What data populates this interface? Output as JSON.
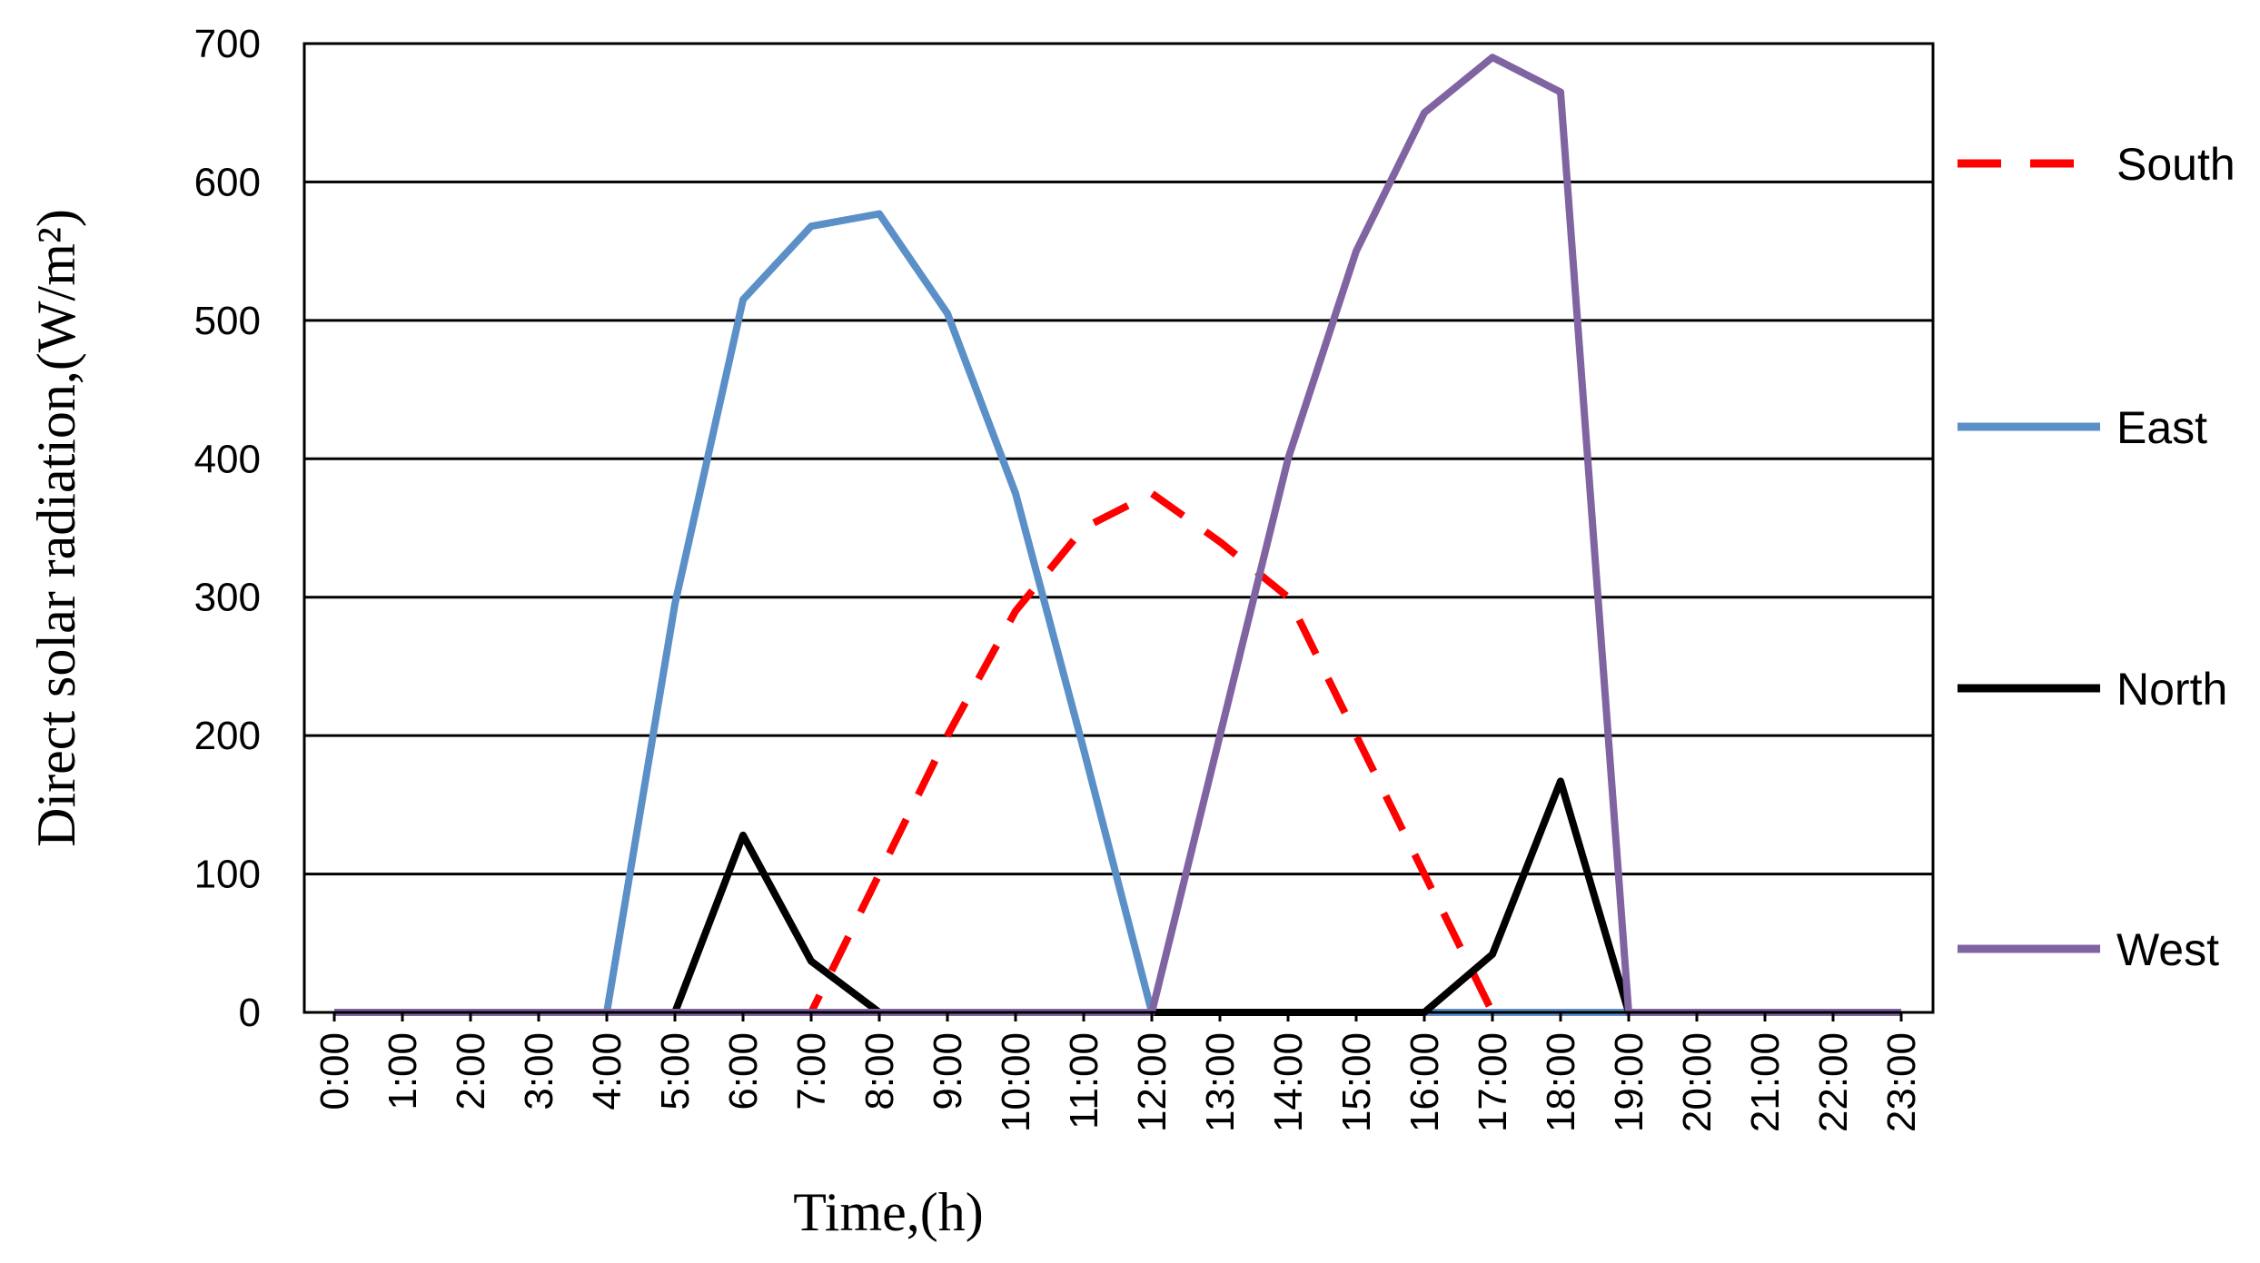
{
  "chart_data": {
    "type": "line",
    "title": "",
    "xlabel": "Time,(h)",
    "ylabel": "Direct solar radiation,(W/m²)",
    "ylim": [
      0,
      700
    ],
    "yticks": [
      "0",
      "100",
      "200",
      "300",
      "400",
      "500",
      "600",
      "700"
    ],
    "grid": "horizontal",
    "legend_position": "right",
    "categories": [
      "0:00",
      "1:00",
      "2:00",
      "3:00",
      "4:00",
      "5:00",
      "6:00",
      "7:00",
      "8:00",
      "9:00",
      "10:00",
      "11:00",
      "12:00",
      "13:00",
      "14:00",
      "15:00",
      "16:00",
      "17:00",
      "18:00",
      "19:00",
      "20:00",
      "21:00",
      "22:00",
      "23:00"
    ],
    "series": [
      {
        "name": "South",
        "color": "#ff0000",
        "style": "dashed",
        "values": [
          0,
          0,
          0,
          0,
          0,
          0,
          0,
          0,
          100,
          200,
          290,
          350,
          375,
          340,
          300,
          200,
          100,
          0,
          0,
          0,
          0,
          0,
          0,
          0
        ]
      },
      {
        "name": "East",
        "color": "#5b8fc7",
        "style": "solid",
        "values": [
          0,
          0,
          0,
          0,
          0,
          295,
          515,
          568,
          577,
          505,
          375,
          190,
          0,
          0,
          0,
          0,
          0,
          0,
          0,
          0,
          0,
          0,
          0,
          0
        ]
      },
      {
        "name": "North",
        "color": "#000000",
        "style": "solid",
        "values": [
          0,
          0,
          0,
          0,
          0,
          0,
          128,
          37,
          0,
          0,
          0,
          0,
          0,
          0,
          0,
          0,
          0,
          42,
          167,
          0,
          0,
          0,
          0,
          0
        ]
      },
      {
        "name": "West",
        "color": "#8064a2",
        "style": "solid",
        "values": [
          0,
          0,
          0,
          0,
          0,
          0,
          0,
          0,
          0,
          0,
          0,
          0,
          0,
          200,
          400,
          550,
          650,
          690,
          665,
          0,
          0,
          0,
          0,
          0
        ]
      }
    ]
  }
}
